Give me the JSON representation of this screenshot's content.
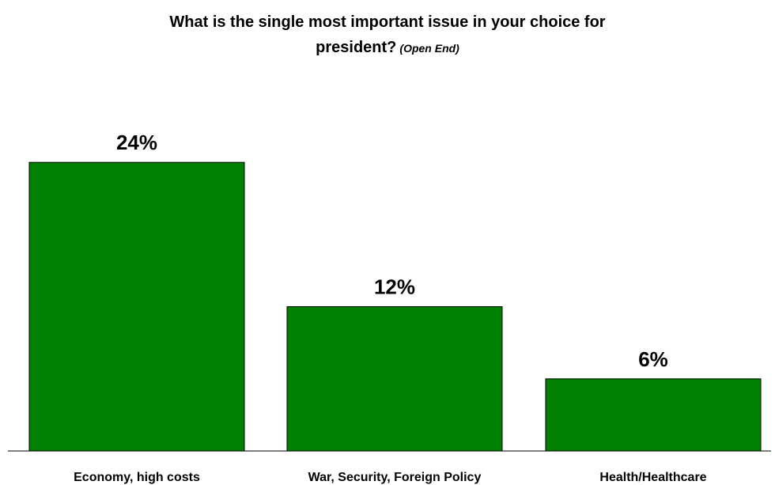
{
  "chart_data": {
    "type": "bar",
    "title_line1": "What is the single most important issue in your choice for",
    "title_line2": "president?",
    "subtitle": "(Open End)",
    "categories": [
      "Economy, high costs",
      "War, Security, Foreign Policy",
      "Health/Healthcare"
    ],
    "values": [
      24,
      12,
      6
    ],
    "value_labels": [
      "24%",
      "12%",
      "6%"
    ],
    "ylim": [
      0,
      28
    ],
    "grid": false,
    "legend": "none",
    "bar_color": "#008000",
    "bar_stroke": "#000000"
  }
}
